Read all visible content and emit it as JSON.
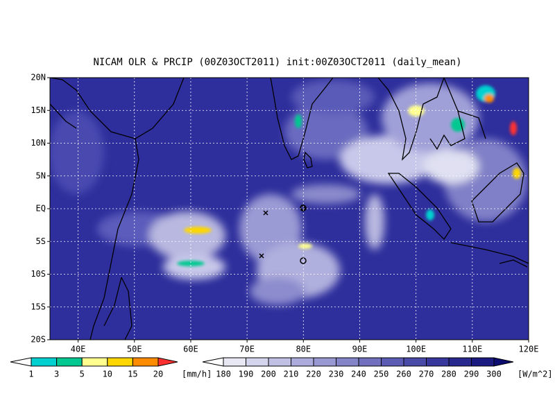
{
  "title": "NICAM OLR & PRCIP (00Z03OCT2011) init:00Z03OCT2011 (daily_mean)",
  "lat_labels": [
    "20N",
    "15N",
    "10N",
    "5N",
    "EQ",
    "5S",
    "10S",
    "15S",
    "20S"
  ],
  "lon_labels": [
    "40E",
    "50E",
    "60E",
    "70E",
    "80E",
    "90E",
    "100E",
    "110E",
    "120E"
  ],
  "precip_legend": {
    "labels": [
      "1",
      "3",
      "5",
      "10",
      "15",
      "20"
    ],
    "unit": "[mm/h]"
  },
  "olr_legend": {
    "labels": [
      "180",
      "190",
      "200",
      "210",
      "220",
      "230",
      "240",
      "250",
      "260",
      "270",
      "280",
      "290",
      "300"
    ],
    "unit": "[W/m^2]"
  }
}
